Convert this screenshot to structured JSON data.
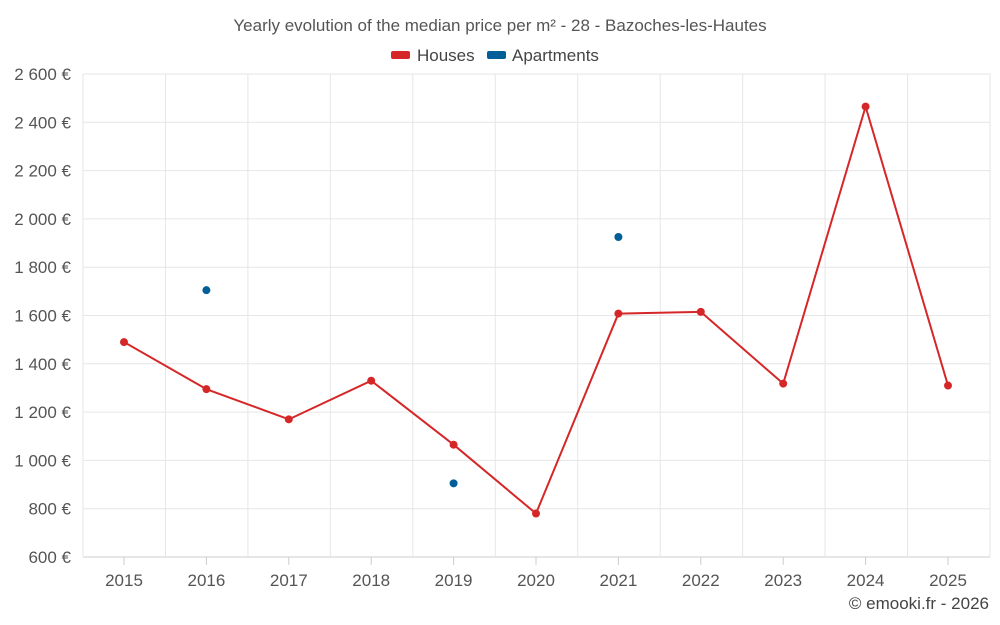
{
  "chart_data": {
    "type": "line",
    "title": "Yearly evolution of the median price per m² - 28 - Bazoches-les-Hautes",
    "categories": [
      "2015",
      "2016",
      "2017",
      "2018",
      "2019",
      "2020",
      "2021",
      "2022",
      "2023",
      "2024",
      "2025"
    ],
    "y_tick_labels": [
      "600 €",
      "800 €",
      "1 000 €",
      "1 200 €",
      "1 400 €",
      "1 600 €",
      "1 800 €",
      "2 000 €",
      "2 200 €",
      "2 400 €",
      "2 600 €"
    ],
    "y_ticks": [
      600,
      800,
      1000,
      1200,
      1400,
      1600,
      1800,
      2000,
      2200,
      2400,
      2600
    ],
    "ylim": [
      600,
      2600
    ],
    "xlabel": "",
    "ylabel": "",
    "grid": true,
    "legend_position": "top-center",
    "series": [
      {
        "name": "Houses",
        "color": "#d62728",
        "connected": true,
        "values": [
          1490,
          1295,
          1170,
          1330,
          1065,
          780,
          1608,
          1615,
          1318,
          2465,
          1310
        ]
      },
      {
        "name": "Apartments",
        "color": "#005f99",
        "connected": false,
        "values": [
          null,
          1705,
          null,
          null,
          905,
          null,
          1925,
          null,
          null,
          null,
          null
        ]
      }
    ]
  },
  "credit": "© emooki.fr - 2026"
}
